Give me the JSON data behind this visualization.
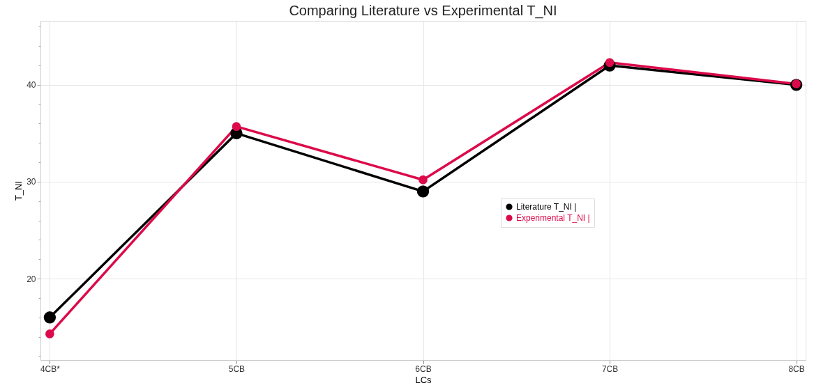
{
  "chart_data": {
    "type": "line",
    "title": "Comparing Literature vs Experimental T_NI",
    "xlabel": "LCs",
    "ylabel": "T_NI",
    "categories": [
      "4CB*",
      "5CB",
      "6CB",
      "7CB",
      "8CB"
    ],
    "series": [
      {
        "name": "Literature T_NI |",
        "color": "#000000",
        "values": [
          16,
          35,
          29,
          42,
          40
        ]
      },
      {
        "name": "Experimental T_NI |",
        "color": "#dc0a4a",
        "values": [
          14.3,
          35.7,
          30.2,
          42.3,
          40.1
        ]
      }
    ],
    "ylim": [
      11.6,
      46.6
    ],
    "yticks": [
      {
        "value": 12,
        "label": null
      },
      {
        "value": 14,
        "label": null
      },
      {
        "value": 16,
        "label": null
      },
      {
        "value": 18,
        "label": null
      },
      20,
      {
        "value": 22,
        "label": null
      },
      {
        "value": 24,
        "label": null
      },
      {
        "value": 26,
        "label": null
      },
      {
        "value": 28,
        "label": null
      },
      30,
      {
        "value": 32,
        "label": null
      },
      {
        "value": 34,
        "label": null
      },
      {
        "value": 36,
        "label": null
      },
      {
        "value": 38,
        "label": null
      },
      40,
      {
        "value": 42,
        "label": null
      },
      {
        "value": 44,
        "label": null
      },
      {
        "value": 46,
        "label": null
      }
    ],
    "grid": true,
    "legend": "right",
    "marker": "circle",
    "line_style": "solid"
  }
}
